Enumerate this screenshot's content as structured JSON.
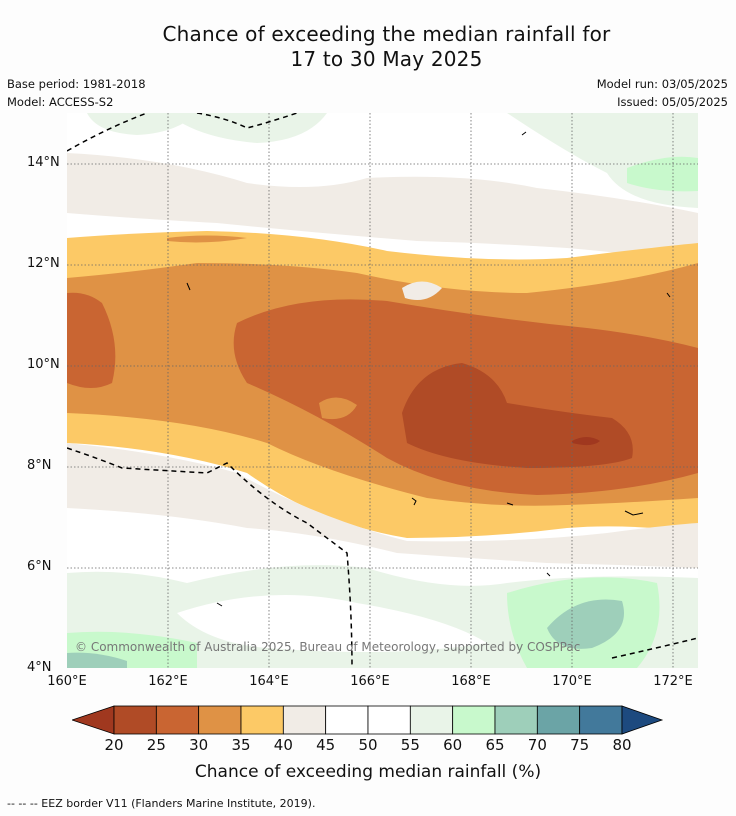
{
  "title_line1": "Chance of exceeding the median rainfall for",
  "title_line2": "17 to 30 May 2025",
  "base_period": "Base period: 1981-2018",
  "model": "Model: ACCESS-S2",
  "model_run": "Model run: 03/05/2025",
  "issued": "Issued: 05/05/2025",
  "y_ticks": [
    "14°N",
    "12°N",
    "10°N",
    "8°N",
    "6°N",
    "4°N"
  ],
  "x_ticks": [
    "160°E",
    "162°E",
    "164°E",
    "166°E",
    "168°E",
    "170°E",
    "172°E"
  ],
  "copyright": "© Commonwealth of Australia 2025, Bureau of Meteorology, supported by COSPPac",
  "colorbar": {
    "ticks": [
      "20",
      "25",
      "30",
      "35",
      "40",
      "45",
      "50",
      "55",
      "60",
      "65",
      "70",
      "75",
      "80"
    ],
    "colors": [
      "#a0381f",
      "#b04b26",
      "#c96532",
      "#df9245",
      "#fcc966",
      "#f1ece6",
      "#ffffff",
      "#ffffff",
      "#e9f4e8",
      "#c8f9cc",
      "#9ecfba",
      "#6ba4a6",
      "#42799b",
      "#1d4a7f"
    ],
    "label": "Chance of exceeding median rainfall (%)"
  },
  "footnote": "--  --  -- EEZ border V11 (Flanders Marine Institute, 2019)."
}
